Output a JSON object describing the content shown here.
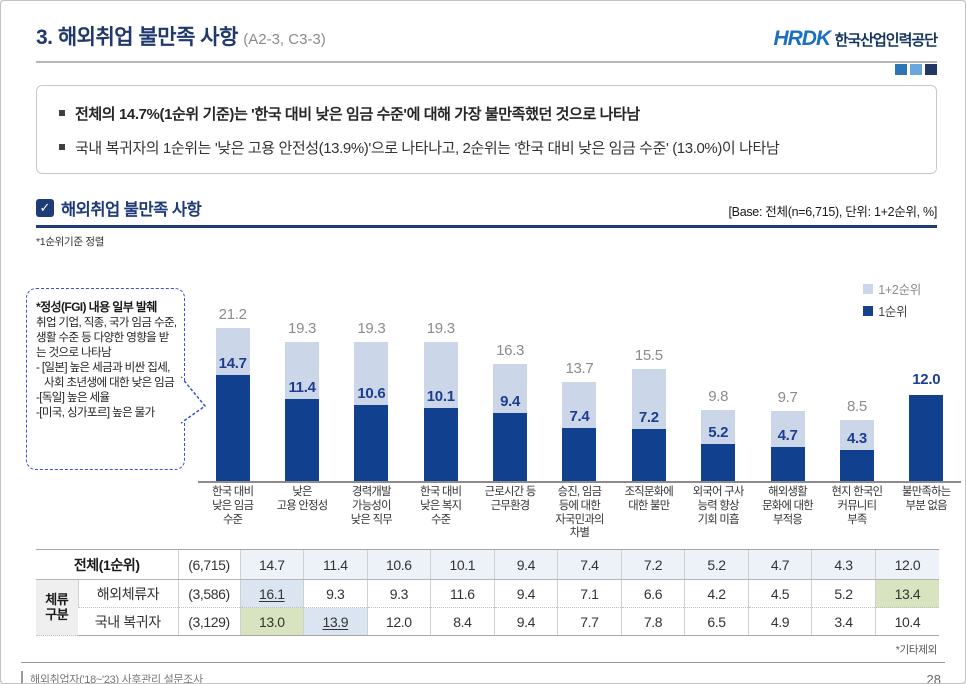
{
  "page": {
    "title": "3. 해외취업 불만족 사항",
    "title_suffix": "(A2-3, C3-3)",
    "logo_text": "HRDK",
    "logo_org": "한국산업인력공단",
    "footnote_right": "*기타제외",
    "footer_source": "해외취업자('18~'23) 사후관리 설문조사",
    "page_number": "28"
  },
  "summary": {
    "bullets": [
      "전체의 14.7%(1순위 기준)는 '한국 대비 낮은 임금 수준'에 대해 가장 불만족했던 것으로 나타남",
      "국내 복귀자의 1순위는 '낮은 고용 안전성(13.9%)'으로 나타나고, 2순위는 '한국 대비 낮은 임금 수준' (13.0%)이 나타남"
    ]
  },
  "section": {
    "title": "해외취업 불만족 사항",
    "base_note": "[Base: 전체(n=6,715), 단위: 1+2순위, %]",
    "sort_note": "*1순위기준 정렬"
  },
  "callout": {
    "title": "*정성(FGI) 내용 일부 발췌",
    "lines": [
      "취업 기업, 직종, 국가 임금 수준, 생활 수준 등 다양한 영향을 받는 것으로 나타남",
      "- [일본] 높은 세금과 비싼 집세, 사회 초년생에 대한 낮은 임금",
      "-[독일] 높은 세율",
      "-[미국, 싱가포르] 높은 물가"
    ]
  },
  "chart_data": {
    "type": "bar",
    "stacked": true,
    "title": "해외취업 불만족 사항",
    "unit": "1+2순위, %",
    "ylim": [
      0,
      22
    ],
    "legend_position": "top-right",
    "categories": [
      "한국 대비\n낮은 임금\n수준",
      "낮은\n고용 안정성",
      "경력개발\n가능성이\n낮은 직무",
      "한국 대비\n낮은 복지\n수준",
      "근로시간 등\n근무환경",
      "승진, 임금\n등에 대한\n자국민과의\n차별",
      "조직문화에\n대한 불만",
      "외국어 구사\n능력 향상\n기회 미흡",
      "해외생활\n문화에 대한\n부적응",
      "현지 한국인\n커뮤니티\n부족",
      "불만족하는\n부분 없음"
    ],
    "series": [
      {
        "name": "1+2순위",
        "color": "#ccd6e9",
        "values": [
          21.2,
          19.3,
          19.3,
          19.3,
          16.3,
          13.7,
          15.5,
          9.8,
          9.7,
          8.5,
          null
        ]
      },
      {
        "name": "1순위",
        "color": "#10408e",
        "values": [
          14.7,
          11.4,
          10.6,
          10.1,
          9.4,
          7.4,
          7.2,
          5.2,
          4.7,
          4.3,
          12.0
        ]
      }
    ]
  },
  "table": {
    "group_label": "체류\n구분",
    "rows": [
      {
        "label": "전체(1순위)",
        "n": "(6,715)",
        "values": [
          "14.7",
          "11.4",
          "10.6",
          "10.1",
          "9.4",
          "7.4",
          "7.2",
          "5.2",
          "4.7",
          "4.3",
          "12.0"
        ],
        "marks": {}
      },
      {
        "label": "해외체류자",
        "n": "(3,586)",
        "values": [
          "16.1",
          "9.3",
          "9.3",
          "11.6",
          "9.4",
          "7.1",
          "6.6",
          "4.2",
          "4.5",
          "5.2",
          "13.4"
        ],
        "marks": {
          "0": "blue-underline",
          "10": "green"
        }
      },
      {
        "label": "국내 복귀자",
        "n": "(3,129)",
        "values": [
          "13.0",
          "13.9",
          "12.0",
          "8.4",
          "9.4",
          "7.7",
          "7.8",
          "6.5",
          "4.9",
          "3.4",
          "10.4"
        ],
        "marks": {
          "0": "green",
          "1": "blue-underline"
        }
      }
    ]
  },
  "colors": {
    "navy": "#1e3c78",
    "bar_dark": "#10408e",
    "bar_light": "#ccd6e9",
    "mark_blue": "#dbe5f1",
    "mark_green": "#d8e4c0",
    "logo_squares": [
      "#2e75b6",
      "#6aa7dc",
      "#1f3864"
    ]
  }
}
